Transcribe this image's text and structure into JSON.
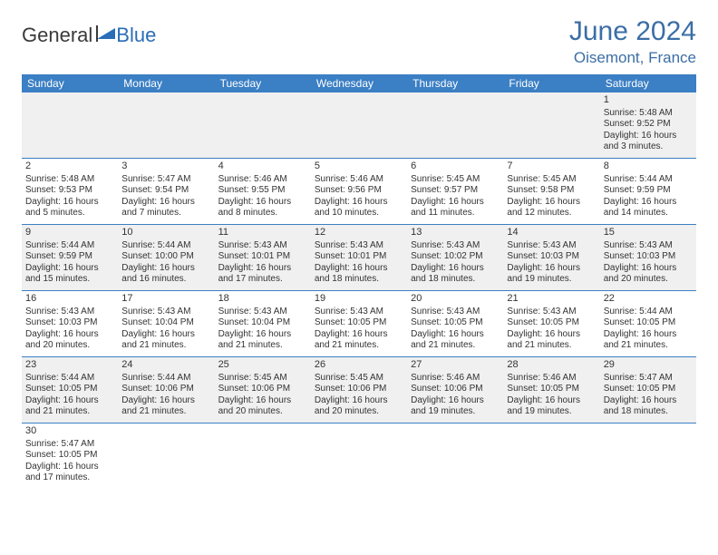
{
  "logo": {
    "part1": "General",
    "part2": "Blue"
  },
  "title": "June 2024",
  "location": "Oisemont, France",
  "header_bg": "#3b7fc4",
  "header_fg": "#ffffff",
  "accent": "#3b6ea5",
  "days": [
    "Sunday",
    "Monday",
    "Tuesday",
    "Wednesday",
    "Thursday",
    "Friday",
    "Saturday"
  ],
  "weeks": [
    [
      null,
      null,
      null,
      null,
      null,
      null,
      {
        "n": "1",
        "sr": "Sunrise: 5:48 AM",
        "ss": "Sunset: 9:52 PM",
        "dl1": "Daylight: 16 hours",
        "dl2": "and 3 minutes."
      }
    ],
    [
      {
        "n": "2",
        "sr": "Sunrise: 5:48 AM",
        "ss": "Sunset: 9:53 PM",
        "dl1": "Daylight: 16 hours",
        "dl2": "and 5 minutes."
      },
      {
        "n": "3",
        "sr": "Sunrise: 5:47 AM",
        "ss": "Sunset: 9:54 PM",
        "dl1": "Daylight: 16 hours",
        "dl2": "and 7 minutes."
      },
      {
        "n": "4",
        "sr": "Sunrise: 5:46 AM",
        "ss": "Sunset: 9:55 PM",
        "dl1": "Daylight: 16 hours",
        "dl2": "and 8 minutes."
      },
      {
        "n": "5",
        "sr": "Sunrise: 5:46 AM",
        "ss": "Sunset: 9:56 PM",
        "dl1": "Daylight: 16 hours",
        "dl2": "and 10 minutes."
      },
      {
        "n": "6",
        "sr": "Sunrise: 5:45 AM",
        "ss": "Sunset: 9:57 PM",
        "dl1": "Daylight: 16 hours",
        "dl2": "and 11 minutes."
      },
      {
        "n": "7",
        "sr": "Sunrise: 5:45 AM",
        "ss": "Sunset: 9:58 PM",
        "dl1": "Daylight: 16 hours",
        "dl2": "and 12 minutes."
      },
      {
        "n": "8",
        "sr": "Sunrise: 5:44 AM",
        "ss": "Sunset: 9:59 PM",
        "dl1": "Daylight: 16 hours",
        "dl2": "and 14 minutes."
      }
    ],
    [
      {
        "n": "9",
        "sr": "Sunrise: 5:44 AM",
        "ss": "Sunset: 9:59 PM",
        "dl1": "Daylight: 16 hours",
        "dl2": "and 15 minutes."
      },
      {
        "n": "10",
        "sr": "Sunrise: 5:44 AM",
        "ss": "Sunset: 10:00 PM",
        "dl1": "Daylight: 16 hours",
        "dl2": "and 16 minutes."
      },
      {
        "n": "11",
        "sr": "Sunrise: 5:43 AM",
        "ss": "Sunset: 10:01 PM",
        "dl1": "Daylight: 16 hours",
        "dl2": "and 17 minutes."
      },
      {
        "n": "12",
        "sr": "Sunrise: 5:43 AM",
        "ss": "Sunset: 10:01 PM",
        "dl1": "Daylight: 16 hours",
        "dl2": "and 18 minutes."
      },
      {
        "n": "13",
        "sr": "Sunrise: 5:43 AM",
        "ss": "Sunset: 10:02 PM",
        "dl1": "Daylight: 16 hours",
        "dl2": "and 18 minutes."
      },
      {
        "n": "14",
        "sr": "Sunrise: 5:43 AM",
        "ss": "Sunset: 10:03 PM",
        "dl1": "Daylight: 16 hours",
        "dl2": "and 19 minutes."
      },
      {
        "n": "15",
        "sr": "Sunrise: 5:43 AM",
        "ss": "Sunset: 10:03 PM",
        "dl1": "Daylight: 16 hours",
        "dl2": "and 20 minutes."
      }
    ],
    [
      {
        "n": "16",
        "sr": "Sunrise: 5:43 AM",
        "ss": "Sunset: 10:03 PM",
        "dl1": "Daylight: 16 hours",
        "dl2": "and 20 minutes."
      },
      {
        "n": "17",
        "sr": "Sunrise: 5:43 AM",
        "ss": "Sunset: 10:04 PM",
        "dl1": "Daylight: 16 hours",
        "dl2": "and 21 minutes."
      },
      {
        "n": "18",
        "sr": "Sunrise: 5:43 AM",
        "ss": "Sunset: 10:04 PM",
        "dl1": "Daylight: 16 hours",
        "dl2": "and 21 minutes."
      },
      {
        "n": "19",
        "sr": "Sunrise: 5:43 AM",
        "ss": "Sunset: 10:05 PM",
        "dl1": "Daylight: 16 hours",
        "dl2": "and 21 minutes."
      },
      {
        "n": "20",
        "sr": "Sunrise: 5:43 AM",
        "ss": "Sunset: 10:05 PM",
        "dl1": "Daylight: 16 hours",
        "dl2": "and 21 minutes."
      },
      {
        "n": "21",
        "sr": "Sunrise: 5:43 AM",
        "ss": "Sunset: 10:05 PM",
        "dl1": "Daylight: 16 hours",
        "dl2": "and 21 minutes."
      },
      {
        "n": "22",
        "sr": "Sunrise: 5:44 AM",
        "ss": "Sunset: 10:05 PM",
        "dl1": "Daylight: 16 hours",
        "dl2": "and 21 minutes."
      }
    ],
    [
      {
        "n": "23",
        "sr": "Sunrise: 5:44 AM",
        "ss": "Sunset: 10:05 PM",
        "dl1": "Daylight: 16 hours",
        "dl2": "and 21 minutes."
      },
      {
        "n": "24",
        "sr": "Sunrise: 5:44 AM",
        "ss": "Sunset: 10:06 PM",
        "dl1": "Daylight: 16 hours",
        "dl2": "and 21 minutes."
      },
      {
        "n": "25",
        "sr": "Sunrise: 5:45 AM",
        "ss": "Sunset: 10:06 PM",
        "dl1": "Daylight: 16 hours",
        "dl2": "and 20 minutes."
      },
      {
        "n": "26",
        "sr": "Sunrise: 5:45 AM",
        "ss": "Sunset: 10:06 PM",
        "dl1": "Daylight: 16 hours",
        "dl2": "and 20 minutes."
      },
      {
        "n": "27",
        "sr": "Sunrise: 5:46 AM",
        "ss": "Sunset: 10:06 PM",
        "dl1": "Daylight: 16 hours",
        "dl2": "and 19 minutes."
      },
      {
        "n": "28",
        "sr": "Sunrise: 5:46 AM",
        "ss": "Sunset: 10:05 PM",
        "dl1": "Daylight: 16 hours",
        "dl2": "and 19 minutes."
      },
      {
        "n": "29",
        "sr": "Sunrise: 5:47 AM",
        "ss": "Sunset: 10:05 PM",
        "dl1": "Daylight: 16 hours",
        "dl2": "and 18 minutes."
      }
    ],
    [
      {
        "n": "30",
        "sr": "Sunrise: 5:47 AM",
        "ss": "Sunset: 10:05 PM",
        "dl1": "Daylight: 16 hours",
        "dl2": "and 17 minutes."
      },
      null,
      null,
      null,
      null,
      null,
      null
    ]
  ]
}
